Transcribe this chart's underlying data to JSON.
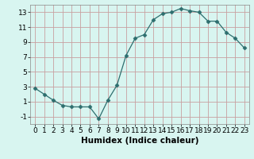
{
  "x": [
    0,
    1,
    2,
    3,
    4,
    5,
    6,
    7,
    8,
    9,
    10,
    11,
    12,
    13,
    14,
    15,
    16,
    17,
    18,
    19,
    20,
    21,
    22,
    23
  ],
  "y": [
    2.8,
    2.0,
    1.2,
    0.5,
    0.3,
    0.3,
    0.3,
    -1.3,
    1.2,
    3.2,
    7.2,
    9.5,
    10.0,
    12.0,
    12.8,
    13.0,
    13.5,
    13.2,
    13.0,
    11.8,
    11.8,
    10.3,
    9.5,
    8.2
  ],
  "xlabel": "Humidex (Indice chaleur)",
  "xlim_min": -0.5,
  "xlim_max": 23.5,
  "ylim_min": -2.0,
  "ylim_max": 14.0,
  "yticks": [
    -1,
    1,
    3,
    5,
    7,
    9,
    11,
    13
  ],
  "xtick_labels": [
    "0",
    "1",
    "2",
    "3",
    "4",
    "5",
    "6",
    "7",
    "8",
    "9",
    "10",
    "11",
    "12",
    "13",
    "14",
    "15",
    "16",
    "17",
    "18",
    "19",
    "20",
    "21",
    "22",
    "23"
  ],
  "line_color": "#2d6e6e",
  "marker": "D",
  "marker_size": 2.5,
  "bg_color": "#d8f5f0",
  "grid_color": "#f0a0a0",
  "tick_fontsize": 6.5,
  "label_fontsize": 7.5
}
